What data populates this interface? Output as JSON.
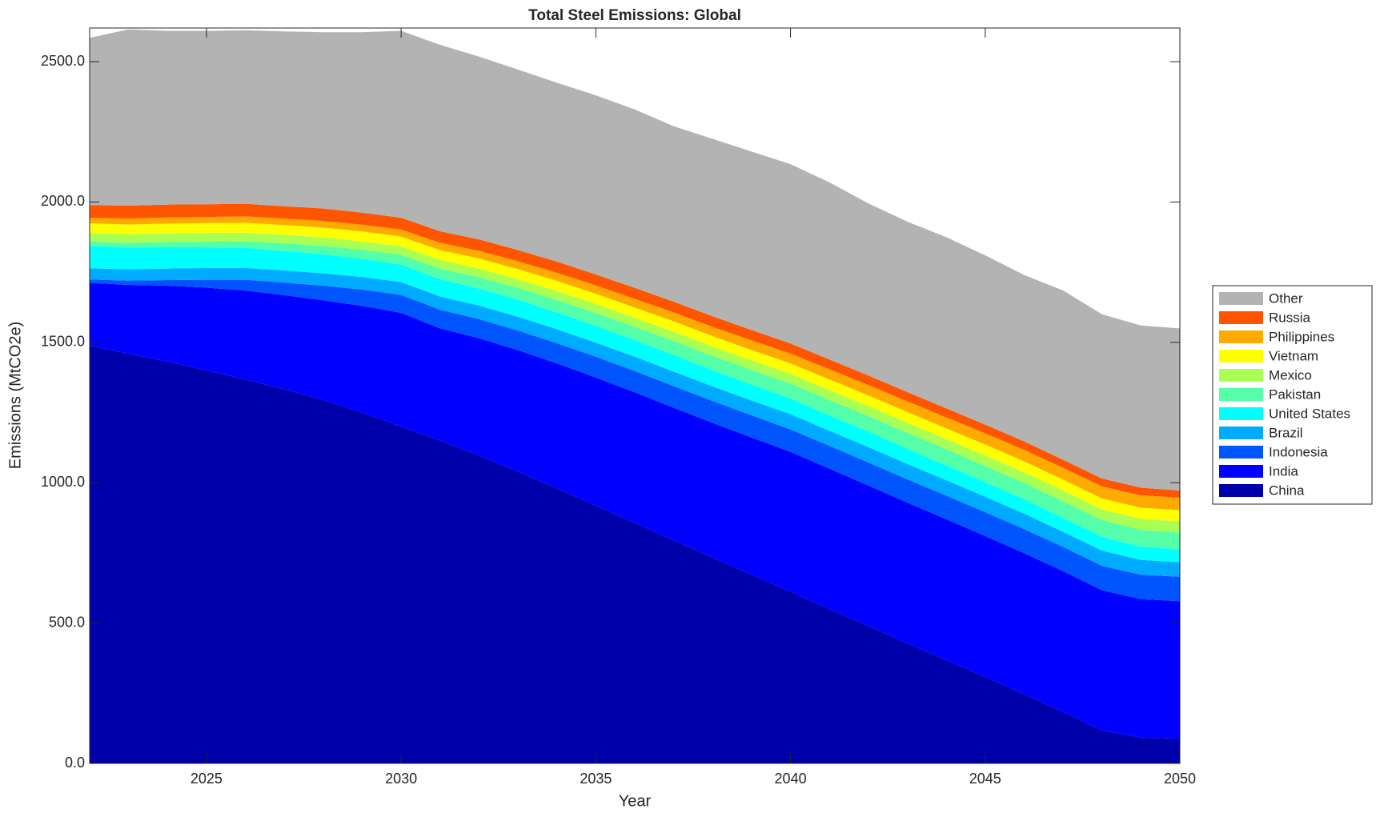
{
  "chart_data": {
    "type": "stacked_area",
    "title": "Total Steel Emissions: Global",
    "x_label": "Year",
    "y_label": "Emissions (MtCO2e)",
    "x": [
      2022,
      2023,
      2024,
      2025,
      2026,
      2027,
      2028,
      2029,
      2030,
      2031,
      2032,
      2033,
      2034,
      2035,
      2036,
      2037,
      2038,
      2039,
      2040,
      2041,
      2042,
      2043,
      2044,
      2045,
      2046,
      2047,
      2048,
      2049,
      2050
    ],
    "xlim": [
      2022,
      2050
    ],
    "xticks": [
      2025,
      2030,
      2035,
      2040,
      2045,
      2050
    ],
    "ylim": [
      0,
      2620
    ],
    "yticks": [
      {
        "value": 0,
        "label": "0.0"
      },
      {
        "value": 500,
        "label": "500.0"
      },
      {
        "value": 1000,
        "label": "1000.0"
      },
      {
        "value": 1500,
        "label": "1500.0"
      },
      {
        "value": 2000,
        "label": "2000.0"
      },
      {
        "value": 2500,
        "label": "2500.0"
      }
    ],
    "legend_position": "right",
    "series": [
      {
        "name": "China",
        "color": "#0000aa",
        "values": [
          1488,
          1460,
          1432,
          1400,
          1368,
          1333,
          1295,
          1250,
          1200,
          1150,
          1097,
          1040,
          980,
          918,
          857,
          795,
          733,
          672,
          612,
          550,
          490,
          428,
          368,
          308,
          247,
          183,
          118,
          92,
          88
        ]
      },
      {
        "name": "India",
        "color": "#0000ff",
        "values": [
          224,
          245,
          270,
          295,
          317,
          335,
          355,
          380,
          405,
          400,
          418,
          432,
          445,
          457,
          465,
          472,
          480,
          489,
          498,
          500,
          500,
          501,
          502,
          502,
          502,
          502,
          499,
          493,
          490
        ]
      },
      {
        "name": "Indonesia",
        "color": "#0055ff",
        "values": [
          12,
          15,
          20,
          28,
          38,
          45,
          52,
          58,
          64,
          66,
          68,
          70,
          72,
          74,
          76,
          77,
          78,
          79,
          80,
          81,
          82,
          83,
          84,
          85,
          86,
          86,
          87,
          87,
          87
        ]
      },
      {
        "name": "Brazil",
        "color": "#00aaff",
        "values": [
          40,
          40,
          41,
          42,
          42,
          43,
          44,
          45,
          46,
          47,
          48,
          49,
          50,
          50,
          51,
          52,
          52,
          53,
          54,
          54,
          55,
          55,
          55,
          55,
          55,
          54,
          54,
          53,
          52
        ]
      },
      {
        "name": "United States",
        "color": "#00ffff",
        "values": [
          80,
          78,
          76,
          74,
          72,
          70,
          68,
          65,
          62,
          62,
          61,
          61,
          60,
          60,
          59,
          59,
          58,
          57,
          56,
          55,
          55,
          54,
          53,
          52,
          51,
          50,
          49,
          47,
          45
        ]
      },
      {
        "name": "Pakistan",
        "color": "#55ffaa",
        "values": [
          15,
          17,
          19,
          21,
          24,
          27,
          30,
          32,
          35,
          38,
          40,
          42,
          44,
          46,
          48,
          50,
          51,
          52,
          54,
          55,
          56,
          57,
          58,
          58,
          59,
          59,
          60,
          60,
          60
        ]
      },
      {
        "name": "Mexico",
        "color": "#aaff55",
        "values": [
          30,
          30,
          30,
          30,
          30,
          30,
          30,
          30,
          30,
          31,
          31,
          31,
          32,
          32,
          32,
          33,
          33,
          34,
          34,
          35,
          35,
          36,
          36,
          37,
          37,
          38,
          38,
          39,
          40
        ]
      },
      {
        "name": "Vietnam",
        "color": "#ffff00",
        "values": [
          35,
          35,
          35,
          35,
          35,
          35,
          35,
          35,
          35,
          35,
          36,
          36,
          36,
          36,
          36,
          37,
          37,
          37,
          37,
          38,
          38,
          38,
          38,
          39,
          39,
          39,
          39,
          40,
          40
        ]
      },
      {
        "name": "Philippines",
        "color": "#ffaa00",
        "values": [
          20,
          21,
          22,
          22,
          23,
          23,
          24,
          24,
          25,
          26,
          27,
          28,
          29,
          30,
          31,
          32,
          33,
          34,
          35,
          36,
          37,
          38,
          39,
          40,
          41,
          42,
          43,
          44,
          45
        ]
      },
      {
        "name": "Russia",
        "color": "#ff5500",
        "values": [
          45,
          46,
          46,
          45,
          45,
          44,
          44,
          43,
          42,
          41,
          41,
          40,
          40,
          39,
          39,
          38,
          38,
          37,
          36,
          35,
          34,
          33,
          32,
          31,
          30,
          29,
          28,
          27,
          25
        ]
      },
      {
        "name": "Other",
        "color": "#b3b3b3",
        "values": [
          596,
          628,
          619,
          618,
          618,
          623,
          628,
          643,
          666,
          664,
          651,
          643,
          637,
          638,
          636,
          625,
          632,
          636,
          639,
          631,
          613,
          607,
          610,
          603,
          593,
          603,
          585,
          578,
          578
        ]
      }
    ]
  }
}
